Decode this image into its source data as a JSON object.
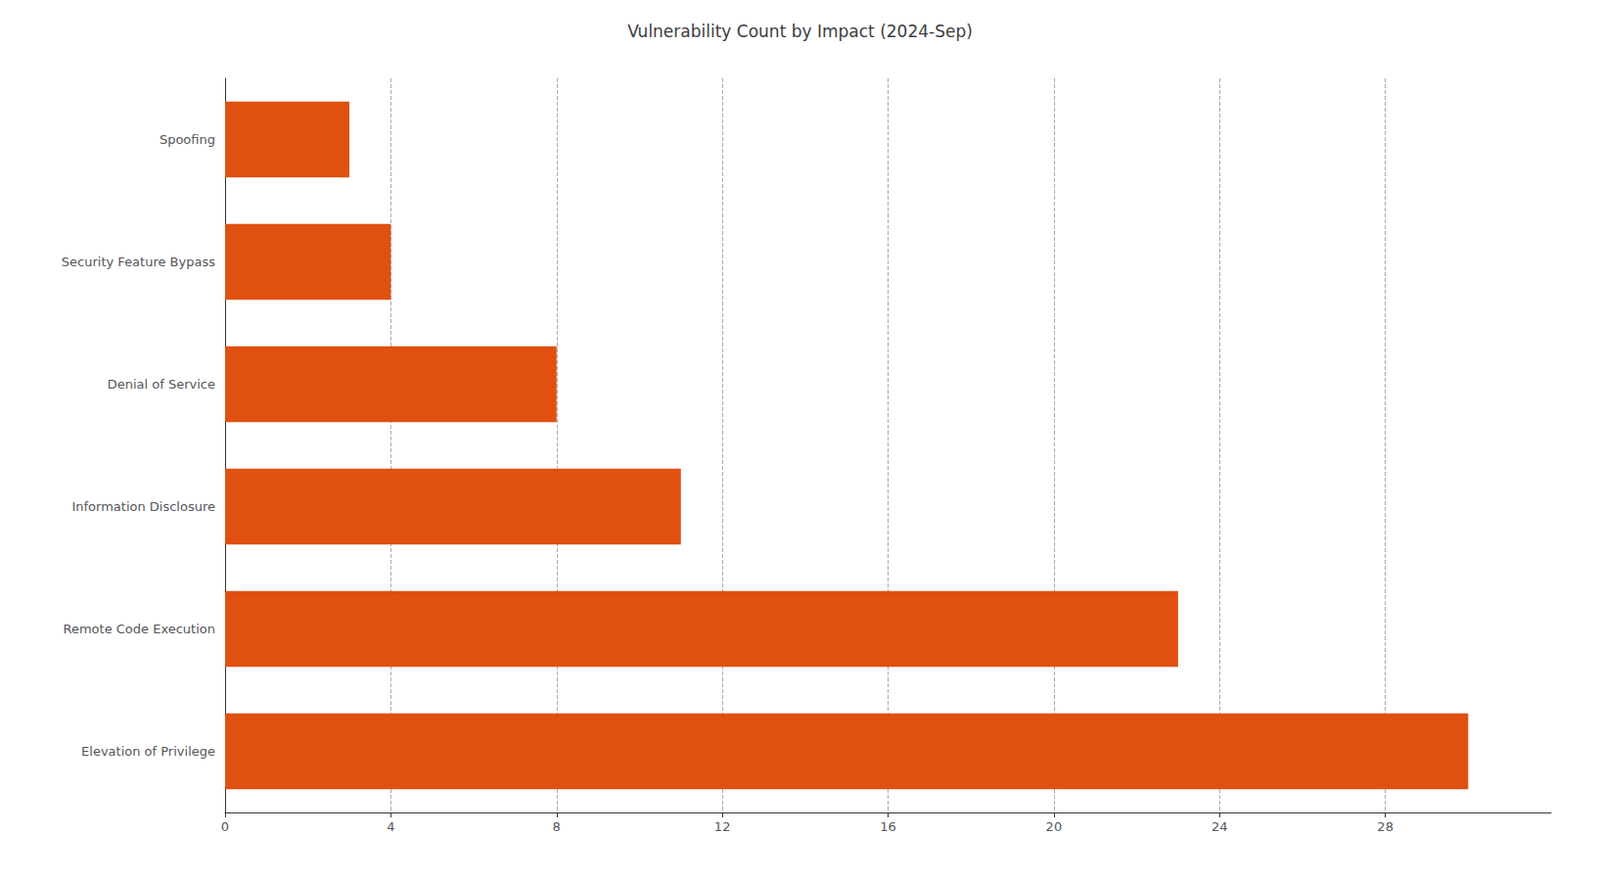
{
  "chart_data": {
    "type": "bar",
    "orientation": "horizontal",
    "title": "Vulnerability Count by Impact (2024-Sep)",
    "categories": [
      "Elevation of Privilege",
      "Remote Code Execution",
      "Information Disclosure",
      "Denial of Service",
      "Security Feature Bypass",
      "Spoofing"
    ],
    "values": [
      30,
      23,
      11,
      8,
      4,
      3
    ],
    "color": "#E05010",
    "xlim": [
      0,
      32
    ],
    "xticks": [
      0,
      4,
      8,
      12,
      16,
      20,
      24,
      28
    ],
    "grid": true
  }
}
